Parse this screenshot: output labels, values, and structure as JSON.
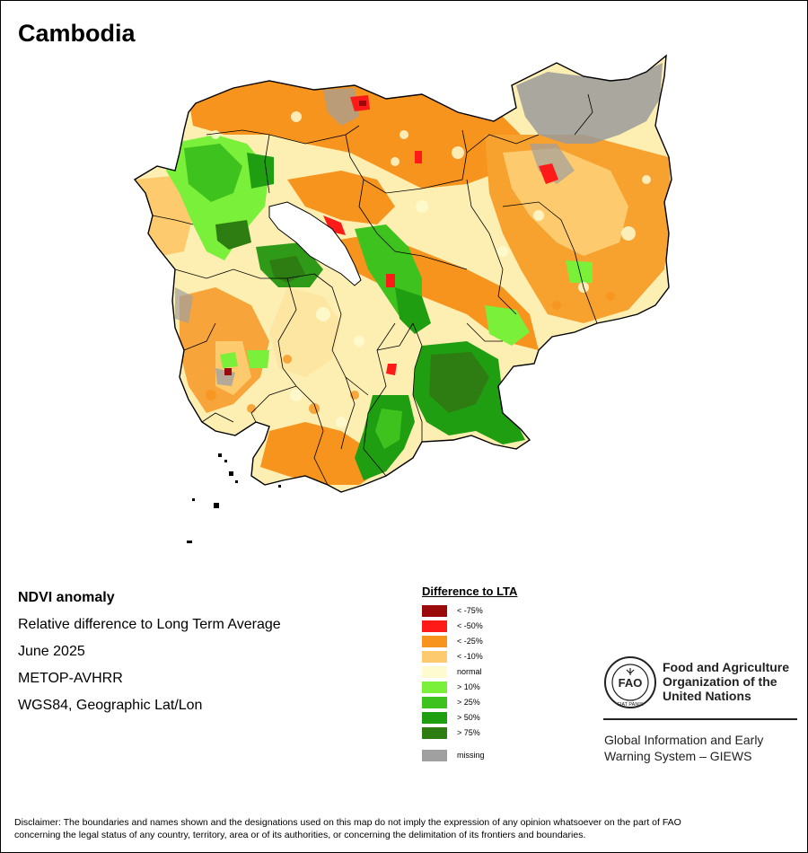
{
  "title": "Cambodia",
  "info": {
    "product": "NDVI anomaly",
    "description": "Relative difference to Long Term Average",
    "period": "June 2025",
    "sensor": "METOP-AVHRR",
    "projection": "WGS84, Geographic Lat/Lon"
  },
  "legend": {
    "title": "Difference to LTA",
    "items": [
      {
        "label": "< -75%",
        "color": "#9b0a0a"
      },
      {
        "label": "< -50%",
        "color": "#ff1a1a"
      },
      {
        "label": "< -25%",
        "color": "#f7941d"
      },
      {
        "label": "< -10%",
        "color": "#fdcb6e"
      },
      {
        "label": "normal",
        "color": "#fefbd0"
      },
      {
        "label": "> 10%",
        "color": "#7af03a"
      },
      {
        "label": "> 25%",
        "color": "#3ec21e"
      },
      {
        "label": "> 50%",
        "color": "#1f9e12"
      },
      {
        "label": "> 75%",
        "color": "#2e7d12"
      }
    ],
    "missing": {
      "label": "missing",
      "color": "#a0a0a0"
    }
  },
  "fao": {
    "org_line1": "Food and Agriculture",
    "org_line2": "Organization of the",
    "org_line3": "United Nations",
    "giews_line1": "Global Information and Early",
    "giews_line2": "Warning System – GIEWS",
    "logo_letters": "FAO",
    "logo_motto": "FIAT PANIS"
  },
  "disclaimer_line1": "Disclaimer: The boundaries and names shown and the designations used on this map do not imply the expression of any opinion whatsoever on the part of FAO",
  "disclaimer_line2": "concerning the legal status of any country, territory, area or of its authorities, or concerning the delimitation of its frontiers and boundaries."
}
